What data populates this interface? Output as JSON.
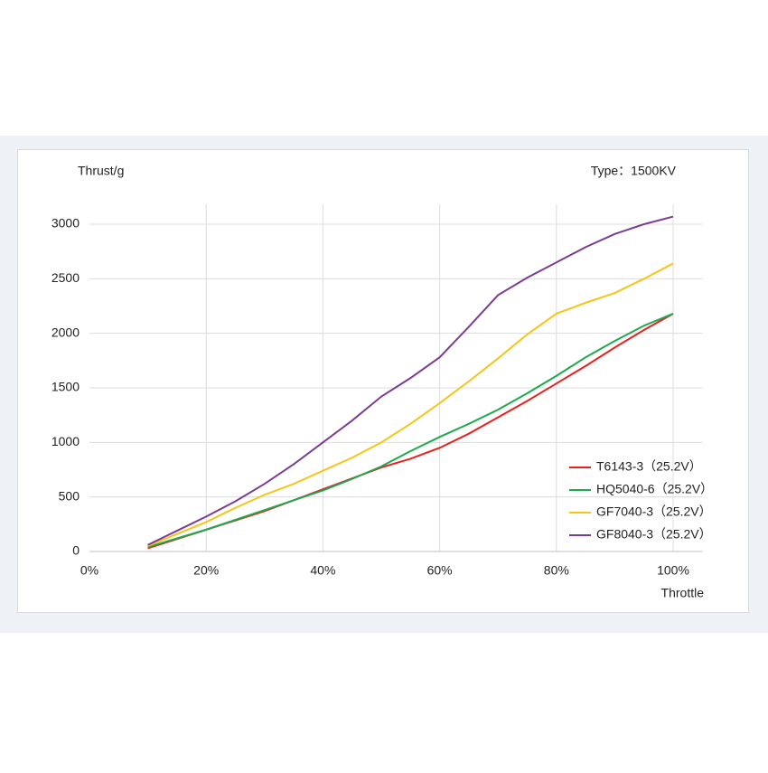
{
  "chart_data": {
    "type": "line",
    "y_label": "Thrust/g",
    "annotation": "Type：1500KV",
    "x_label": "Throttle",
    "x": [
      10,
      15,
      20,
      25,
      30,
      35,
      40,
      45,
      50,
      55,
      60,
      65,
      70,
      75,
      80,
      85,
      90,
      95,
      100
    ],
    "series": [
      {
        "name": "T6143-3（25.2V）",
        "color": "#e8211f",
        "values": [
          30,
          115,
          200,
          285,
          370,
          470,
          570,
          670,
          770,
          850,
          950,
          1080,
          1230,
          1380,
          1540,
          1700,
          1870,
          2030,
          2180
        ]
      },
      {
        "name": "HQ5040-6（25.2V）",
        "color": "#1ea94f",
        "values": [
          40,
          120,
          200,
          290,
          380,
          470,
          560,
          665,
          780,
          920,
          1050,
          1170,
          1300,
          1450,
          1610,
          1780,
          1930,
          2070,
          2180
        ]
      },
      {
        "name": "GF7040-3（25.2V）",
        "color": "#f5c518",
        "values": [
          50,
          160,
          270,
          400,
          520,
          620,
          740,
          860,
          1000,
          1170,
          1360,
          1560,
          1770,
          1990,
          2180,
          2280,
          2370,
          2500,
          2640
        ]
      },
      {
        "name": "GF8040-3（25.2V）",
        "color": "#7b3c94",
        "values": [
          60,
          190,
          320,
          460,
          620,
          800,
          1000,
          1200,
          1420,
          1590,
          1780,
          2060,
          2350,
          2510,
          2650,
          2790,
          2910,
          3000,
          3070
        ]
      }
    ],
    "xlim": [
      0,
      105
    ],
    "xticks": [
      {
        "value": 0,
        "label": "0%"
      },
      {
        "value": 20,
        "label": "20%"
      },
      {
        "value": 40,
        "label": "40%"
      },
      {
        "value": 60,
        "label": "60%"
      },
      {
        "value": 80,
        "label": "80%"
      },
      {
        "value": 100,
        "label": "100%"
      }
    ],
    "ylim": [
      0,
      3000
    ],
    "yticks": [
      0,
      500,
      1000,
      1500,
      2000,
      2500,
      3000
    ],
    "grid": true,
    "legend": "lower right"
  }
}
